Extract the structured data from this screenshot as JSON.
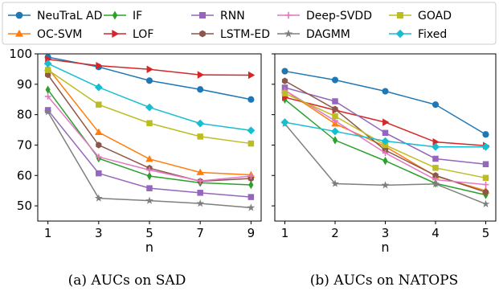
{
  "legend": {
    "items": [
      {
        "name": "NeuTraL AD",
        "color": "#1f77b4",
        "marker": "circle"
      },
      {
        "name": "IF",
        "color": "#2ca02c",
        "marker": "diamond-thin"
      },
      {
        "name": "RNN",
        "color": "#9467bd",
        "marker": "square"
      },
      {
        "name": "Deep-SVDD",
        "color": "#e377c2",
        "marker": "plus"
      },
      {
        "name": "GOAD",
        "color": "#bcbd22",
        "marker": "square"
      },
      {
        "name": "OC-SVM",
        "color": "#ff7f0e",
        "marker": "triangle-up"
      },
      {
        "name": "LOF",
        "color": "#d62728",
        "marker": "triangle-right"
      },
      {
        "name": "LSTM-ED",
        "color": "#8c564b",
        "marker": "hexagon"
      },
      {
        "name": "DAGMM",
        "color": "#7f7f7f",
        "marker": "star"
      },
      {
        "name": "Fixed",
        "color": "#17becf",
        "marker": "diamond"
      }
    ]
  },
  "chart_data": [
    {
      "type": "line",
      "caption": "(a) AUCs on SAD",
      "xlabel": "n",
      "ylabel": "",
      "x": [
        1,
        3,
        5,
        7,
        9
      ],
      "xlim": [
        0.6,
        9.4
      ],
      "ylim": [
        45,
        100
      ],
      "yticks": [
        50,
        60,
        70,
        80,
        90,
        100
      ],
      "xticks": [
        1,
        3,
        5,
        7,
        9
      ],
      "grid": false,
      "series": [
        {
          "name": "NeuTraL AD",
          "values": [
            98.9,
            95.7,
            91.2,
            88.3,
            85.0
          ]
        },
        {
          "name": "OC-SVM",
          "values": [
            95.3,
            74.2,
            65.4,
            61.0,
            60.2
          ]
        },
        {
          "name": "IF",
          "values": [
            88.2,
            65.6,
            59.8,
            57.6,
            56.9
          ]
        },
        {
          "name": "LOF",
          "values": [
            98.2,
            96.1,
            94.9,
            93.1,
            93.0
          ]
        },
        {
          "name": "RNN",
          "values": [
            81.5,
            60.7,
            55.8,
            54.3,
            52.9
          ]
        },
        {
          "name": "LSTM-ED",
          "values": [
            93.1,
            70.0,
            62.4,
            58.1,
            59.0
          ]
        },
        {
          "name": "Deep-SVDD",
          "values": [
            86.0,
            66.1,
            61.8,
            58.2,
            59.8
          ]
        },
        {
          "name": "DAGMM",
          "values": [
            80.9,
            52.5,
            51.7,
            50.8,
            49.4
          ]
        },
        {
          "name": "GOAD",
          "values": [
            94.7,
            83.3,
            77.2,
            72.8,
            70.5
          ]
        },
        {
          "name": "Fixed",
          "values": [
            96.8,
            89.0,
            82.4,
            77.1,
            74.8
          ]
        }
      ]
    },
    {
      "type": "line",
      "caption": "(b) AUCs on NATOPS",
      "xlabel": "n",
      "ylabel": "",
      "x": [
        1,
        2,
        3,
        4,
        5
      ],
      "xlim": [
        0.8,
        5.2
      ],
      "ylim": [
        45,
        100
      ],
      "yticks": [
        50,
        60,
        70,
        80,
        90,
        100
      ],
      "xticks": [
        1,
        2,
        3,
        4,
        5
      ],
      "grid": false,
      "series": [
        {
          "name": "NeuTraL AD",
          "values": [
            94.3,
            91.4,
            87.7,
            83.3,
            73.5
          ]
        },
        {
          "name": "OC-SVM",
          "values": [
            88.0,
            77.0,
            69.5,
            59.8,
            55.0
          ]
        },
        {
          "name": "IF",
          "values": [
            85.0,
            71.6,
            64.8,
            57.4,
            53.6
          ]
        },
        {
          "name": "LOF",
          "values": [
            85.7,
            81.5,
            77.5,
            71.0,
            69.8
          ]
        },
        {
          "name": "RNN",
          "values": [
            88.9,
            84.4,
            74.0,
            65.5,
            63.7
          ]
        },
        {
          "name": "LSTM-ED",
          "values": [
            91.1,
            81.8,
            68.3,
            60.0,
            54.5
          ]
        },
        {
          "name": "Deep-SVDD",
          "values": [
            88.0,
            78.0,
            67.4,
            58.6,
            57.0
          ]
        },
        {
          "name": "DAGMM",
          "values": [
            77.0,
            57.3,
            56.8,
            57.2,
            50.6
          ]
        },
        {
          "name": "GOAD",
          "values": [
            87.0,
            79.5,
            70.0,
            62.5,
            59.2
          ]
        },
        {
          "name": "Fixed",
          "values": [
            77.5,
            74.5,
            71.3,
            69.4,
            69.4
          ]
        }
      ]
    }
  ]
}
